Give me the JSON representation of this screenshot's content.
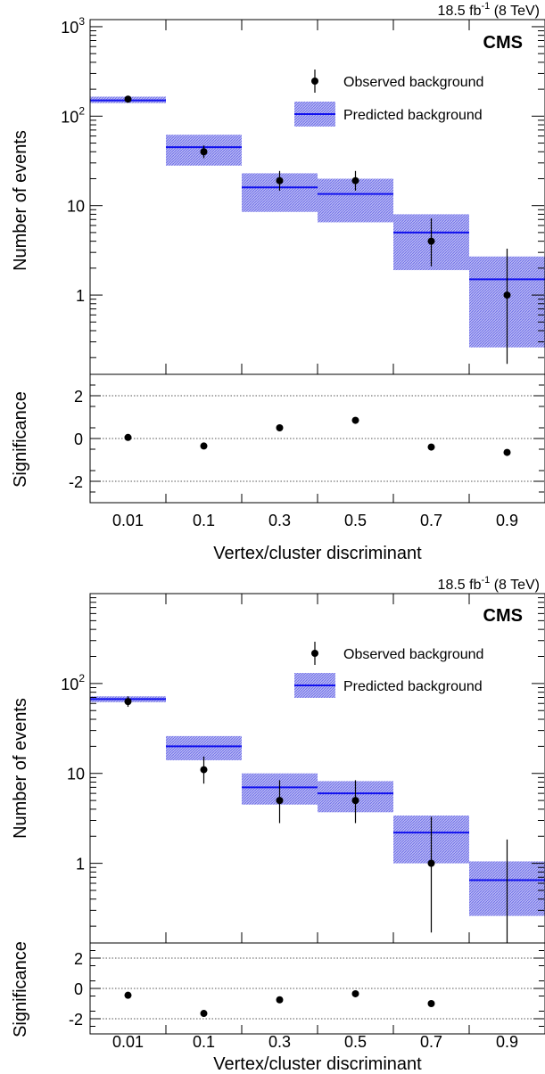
{
  "chart_data": [
    {
      "type": "scatter",
      "lumi_text": "18.5 fb",
      "lumi_sup": "-1",
      "lumi_energy": " (8 TeV)",
      "experiment_label": "CMS",
      "xlabel": "Vertex/cluster discriminant",
      "ylabel_main": "Number of events",
      "ylabel_ratio": "Significance",
      "y_scale": "log",
      "ylim_main": [
        0.13,
        1200
      ],
      "ylim_ratio": [
        -3,
        3
      ],
      "categories": [
        "0.01",
        "0.1",
        "0.3",
        "0.5",
        "0.7",
        "0.9"
      ],
      "main_y_ticks": [
        {
          "value": 1,
          "base": "1",
          "exp": ""
        },
        {
          "value": 10,
          "base": "10",
          "exp": ""
        },
        {
          "value": 100,
          "base": "10",
          "exp": "2"
        },
        {
          "value": 1000,
          "base": "10",
          "exp": "3"
        }
      ],
      "ratio_y_ticks": [
        "2",
        "0",
        "-2"
      ],
      "ratio_y_tick_values": [
        2,
        0,
        -2
      ],
      "legend": {
        "placement": "top-right",
        "observed": "Observed background",
        "predicted": "Predicted background"
      },
      "series": [
        {
          "name": "Observed background",
          "values": [
            155,
            40,
            19,
            19,
            4,
            1
          ],
          "err_low": [
            12,
            6,
            4.3,
            4.3,
            1.9,
            0.83
          ],
          "err_high": [
            13,
            7,
            5.4,
            5.4,
            3.2,
            2.3
          ]
        },
        {
          "name": "Predicted background",
          "values": [
            150,
            45,
            16,
            13.5,
            5,
            1.5
          ],
          "band_low": [
            140,
            28,
            8.5,
            6.5,
            1.9,
            0.26
          ],
          "band_high": [
            165,
            62,
            23,
            20,
            8,
            2.7
          ]
        }
      ],
      "significance": [
        0.05,
        -0.35,
        0.5,
        0.85,
        -0.4,
        -0.65
      ],
      "colors": {
        "band": "#8080ee",
        "line": "#1010ee",
        "marker": "#000000"
      }
    },
    {
      "type": "scatter",
      "lumi_text": "18.5 fb",
      "lumi_sup": "-1",
      "lumi_energy": " (8 TeV)",
      "experiment_label": "CMS",
      "xlabel": "Vertex/cluster discriminant",
      "ylabel_main": "Number of events",
      "ylabel_ratio": "Significance",
      "y_scale": "log",
      "ylim_main": [
        0.13,
        1000
      ],
      "ylim_ratio": [
        -3,
        3
      ],
      "categories": [
        "0.01",
        "0.1",
        "0.3",
        "0.5",
        "0.7",
        "0.9"
      ],
      "main_y_ticks": [
        {
          "value": 1,
          "base": "1",
          "exp": ""
        },
        {
          "value": 10,
          "base": "10",
          "exp": ""
        },
        {
          "value": 100,
          "base": "10",
          "exp": "2"
        }
      ],
      "ratio_y_ticks": [
        "2",
        "0",
        "-2"
      ],
      "ratio_y_tick_values": [
        2,
        0,
        -2
      ],
      "legend": {
        "placement": "top-right",
        "observed": "Observed background",
        "predicted": "Predicted background"
      },
      "series": [
        {
          "name": "Observed background",
          "values": [
            63,
            11,
            5,
            5,
            1,
            0
          ],
          "err_low": [
            8,
            3.3,
            2.2,
            2.2,
            0.83,
            0
          ],
          "err_high": [
            9,
            4.4,
            3.4,
            3.4,
            2.3,
            1.84
          ]
        },
        {
          "name": "Predicted background",
          "values": [
            67,
            20,
            7,
            6,
            2.2,
            0.65
          ],
          "band_low": [
            62,
            14,
            4.5,
            3.7,
            1.0,
            0.26
          ],
          "band_high": [
            72,
            26,
            10,
            8.2,
            3.4,
            1.05
          ]
        }
      ],
      "significance": [
        -0.45,
        -1.65,
        -0.75,
        -0.35,
        -1.0,
        null
      ],
      "colors": {
        "band": "#8080ee",
        "line": "#1010ee",
        "marker": "#000000"
      }
    }
  ]
}
